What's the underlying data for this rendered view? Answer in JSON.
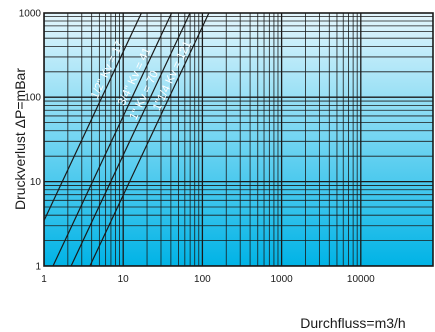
{
  "chart_data": {
    "type": "line",
    "title": "",
    "xlabel": "Durchfluss=m3/h",
    "ylabel": "Druckverlust ΔP=mBar",
    "x_scale": "log",
    "y_scale": "log",
    "xlim": [
      1,
      15000
    ],
    "ylim": [
      1,
      1000
    ],
    "x_ticks": [
      "1",
      "10",
      "100",
      "1000",
      "10000"
    ],
    "y_ticks": [
      "1",
      "10",
      "100",
      "1000"
    ],
    "grid": true,
    "background_gradient": [
      "#e4f6fd",
      "#00b3e6"
    ],
    "line_color": "#1a1a1a",
    "series": [
      {
        "name": "1/2\" Kv = 17",
        "kv": 17,
        "x": [
          0.9,
          17,
          538
        ],
        "y": [
          2.8,
          1000,
          1000000
        ]
      },
      {
        "name": "3/4\" Kv = 41",
        "kv": 41,
        "x": [
          1.3,
          41,
          1296
        ],
        "y": [
          1,
          1000,
          1000000
        ]
      },
      {
        "name": "1\" Kv = 70",
        "kv": 70,
        "x": [
          2.2,
          70,
          2214
        ],
        "y": [
          1,
          1000,
          1000000
        ]
      },
      {
        "name": "1\"1/4 Kv = 121",
        "kv": 121,
        "x": [
          3.8,
          121,
          3826
        ],
        "y": [
          1,
          1000,
          1000000
        ]
      }
    ]
  }
}
